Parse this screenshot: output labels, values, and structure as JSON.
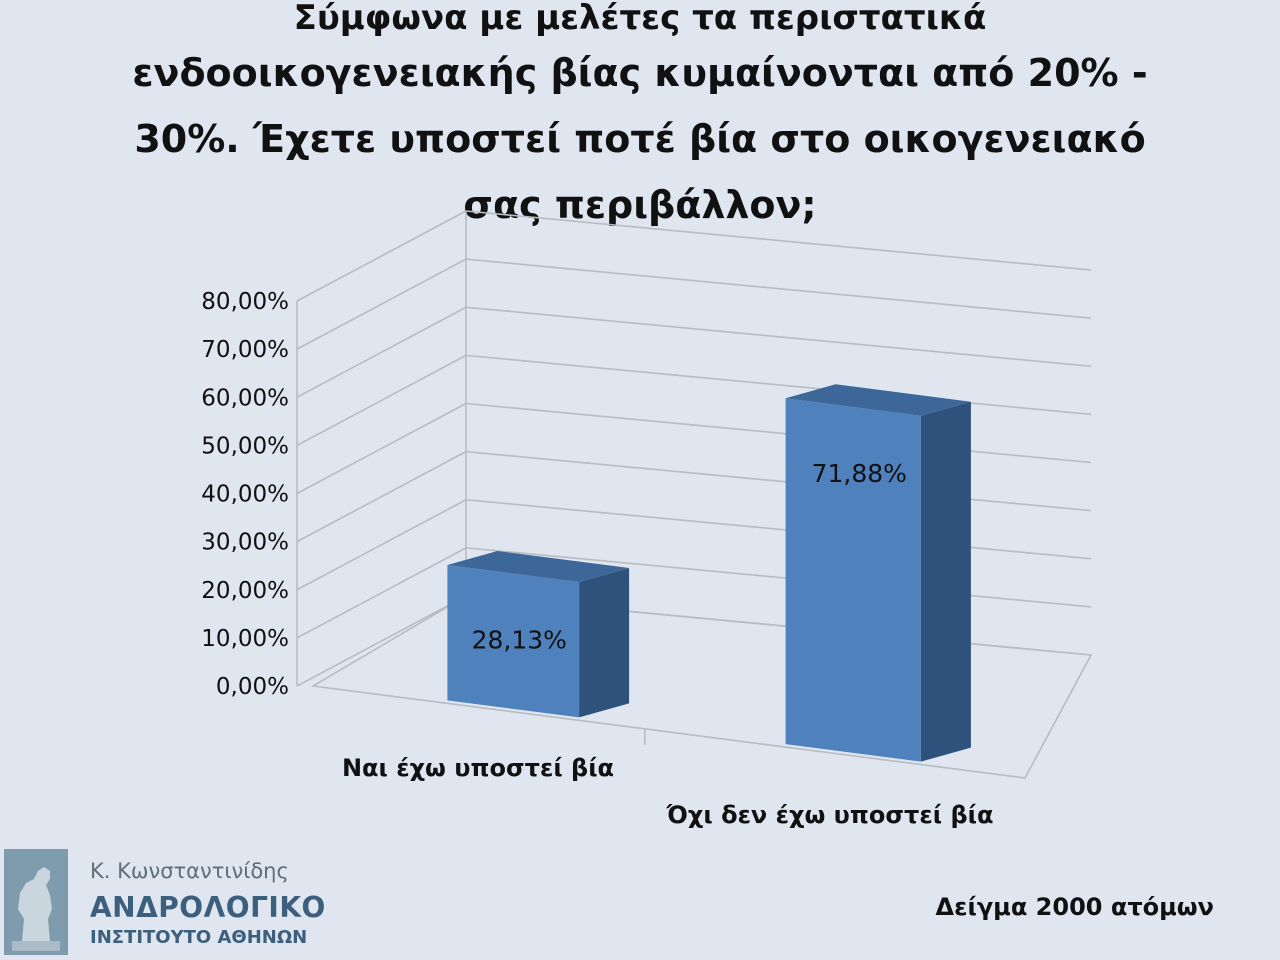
{
  "title": {
    "line1": "Σύμφωνα με μελέτες τα περιστατικά",
    "line2": "ενδοοικογενειακής βίας κυμαίνονται από 20% -",
    "line3": "30%. Έχετε υποστεί ποτέ βία στο οικογενειακό",
    "line4": "σας περιβάλλον;"
  },
  "sample_note": "Δείγμα 2000 ατόμων",
  "logo": {
    "author": "Κ. Κωνσταντινίδης",
    "name": "ΑΝΔΡΟΛΟΓΙΚΟ",
    "subtitle": "ΙΝΣΤΙΤΟΥΤΟ ΑΘΗΝΩΝ"
  },
  "colors": {
    "background": "#dfe6ef",
    "bar_front": "#4f81bd",
    "bar_top": "#3d6699",
    "bar_side": "#2f527d",
    "grid": "#b8bcc2",
    "logo_text": "#3c5f7d"
  },
  "chart_data": {
    "type": "bar",
    "style": "3d-column",
    "categories": [
      "Ναι έχω υποστεί βία",
      "Όχι δεν έχω υποστεί βία"
    ],
    "values": [
      28.13,
      71.88
    ],
    "data_labels": [
      "28,13%",
      "71,88%"
    ],
    "ylim": [
      0,
      80
    ],
    "y_ticks": [
      0,
      10,
      20,
      30,
      40,
      50,
      60,
      70,
      80
    ],
    "y_tick_labels": [
      "0,00%",
      "10,00%",
      "20,00%",
      "30,00%",
      "40,00%",
      "50,00%",
      "60,00%",
      "70,00%",
      "80,00%"
    ],
    "grid": true,
    "legend": "none"
  }
}
